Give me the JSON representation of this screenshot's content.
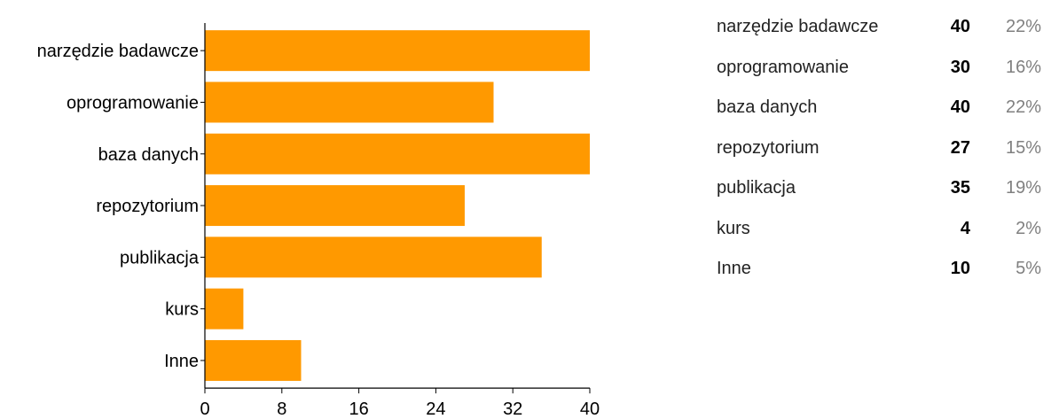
{
  "chart_data": {
    "type": "bar",
    "orientation": "horizontal",
    "categories": [
      "narzędzie badawcze",
      "oprogramowanie",
      "baza danych",
      "repozytorium",
      "publikacja",
      "kurs",
      "Inne"
    ],
    "values": [
      40,
      30,
      40,
      27,
      35,
      4,
      10
    ],
    "xlim": [
      0,
      40
    ],
    "xticks": [
      0,
      8,
      16,
      24,
      32,
      40
    ],
    "bar_color": "#ff9900",
    "grid": false,
    "legend": "none"
  },
  "summary": {
    "rows": [
      {
        "label": "narzędzie badawcze",
        "count": "40",
        "percent": "22%"
      },
      {
        "label": "oprogramowanie",
        "count": "30",
        "percent": "16%"
      },
      {
        "label": "baza danych",
        "count": "40",
        "percent": "22%"
      },
      {
        "label": "repozytorium",
        "count": "27",
        "percent": "15%"
      },
      {
        "label": "publikacja",
        "count": "35",
        "percent": "19%"
      },
      {
        "label": "kurs",
        "count": "4",
        "percent": "2%"
      },
      {
        "label": "Inne",
        "count": "10",
        "percent": "5%"
      }
    ]
  }
}
